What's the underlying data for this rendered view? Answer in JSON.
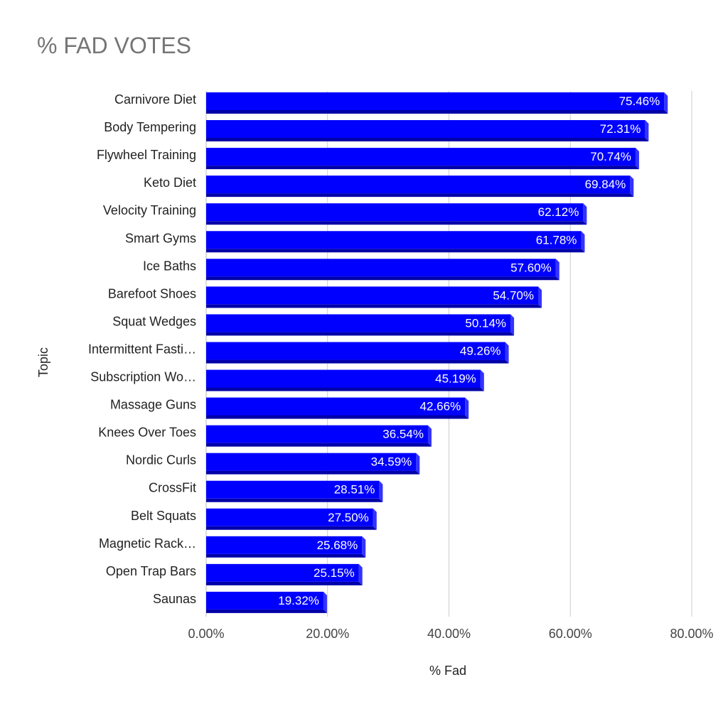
{
  "chart_data": {
    "type": "bar",
    "orientation": "horizontal",
    "title": "% FAD VOTES",
    "xlabel": "% Fad",
    "ylabel": "Topic",
    "xlim": [
      0,
      80
    ],
    "xticks": [
      "0.00%",
      "20.00%",
      "40.00%",
      "60.00%",
      "80.00%"
    ],
    "grid": true,
    "categories": [
      "Carnivore Diet",
      "Body Tempering",
      "Flywheel Training",
      "Keto Diet",
      "Velocity Training",
      "Smart Gyms",
      "Ice Baths",
      "Barefoot Shoes",
      "Squat Wedges",
      "Intermittent Fasti…",
      "Subscription Wo…",
      "Massage Guns",
      "Knees Over Toes",
      "Nordic Curls",
      "CrossFit",
      "Belt Squats",
      "Magnetic Rack…",
      "Open Trap Bars",
      "Saunas"
    ],
    "values": [
      75.46,
      72.31,
      70.74,
      69.84,
      62.12,
      61.78,
      57.6,
      54.7,
      50.14,
      49.26,
      45.19,
      42.66,
      36.54,
      34.59,
      28.51,
      27.5,
      25.68,
      25.15,
      19.32
    ],
    "labels": [
      "75.46%",
      "72.31%",
      "70.74%",
      "69.84%",
      "62.12%",
      "61.78%",
      "57.60%",
      "54.70%",
      "50.14%",
      "49.26%",
      "45.19%",
      "42.66%",
      "36.54%",
      "34.59%",
      "28.51%",
      "27.50%",
      "25.68%",
      "25.15%",
      "19.32%"
    ],
    "colors": {
      "bar": "#0000ff",
      "bar_bottom": "#0000a8",
      "bar_side": "#3333ff",
      "grid": "#cccccc"
    }
  }
}
